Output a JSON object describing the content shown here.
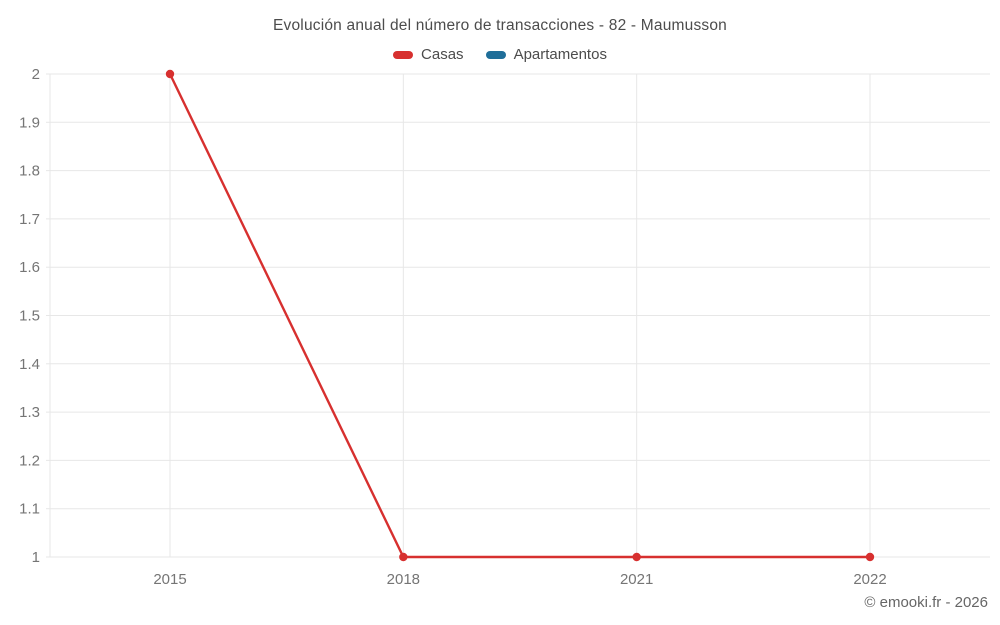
{
  "title": "Evolución anual del número de transacciones - 82 - Maumusson",
  "legend": [
    {
      "label": "Casas",
      "color": "#d7302f"
    },
    {
      "label": "Apartamentos",
      "color": "#1f6e99"
    }
  ],
  "footer": {
    "credit": "© emooki.fr - 2026"
  },
  "colors": {
    "grid": "#e7e7e7",
    "axis_text": "#757575",
    "title_text": "#4c4c4c",
    "credit_text": "#666666",
    "background": "#ffffff"
  },
  "chart_data": {
    "type": "line",
    "title": "Evolución anual del número de transacciones - 82 - Maumusson",
    "categories": [
      "2015",
      "2018",
      "2021",
      "2022"
    ],
    "series": [
      {
        "name": "Casas",
        "color": "#d7302f",
        "values": [
          2,
          1,
          1,
          1
        ]
      },
      {
        "name": "Apartamentos",
        "color": "#1f6e99",
        "values": []
      }
    ],
    "xlabel": "",
    "ylabel": "",
    "ylim": [
      1,
      2
    ],
    "ytick_step": 0.1,
    "yticks": [
      "2",
      "1.9",
      "1.8",
      "1.7",
      "1.6",
      "1.5",
      "1.4",
      "1.3",
      "1.2",
      "1.1",
      "1"
    ],
    "x_axis_type": "category",
    "grid": true,
    "legend_position": "top",
    "marker": "circle"
  }
}
